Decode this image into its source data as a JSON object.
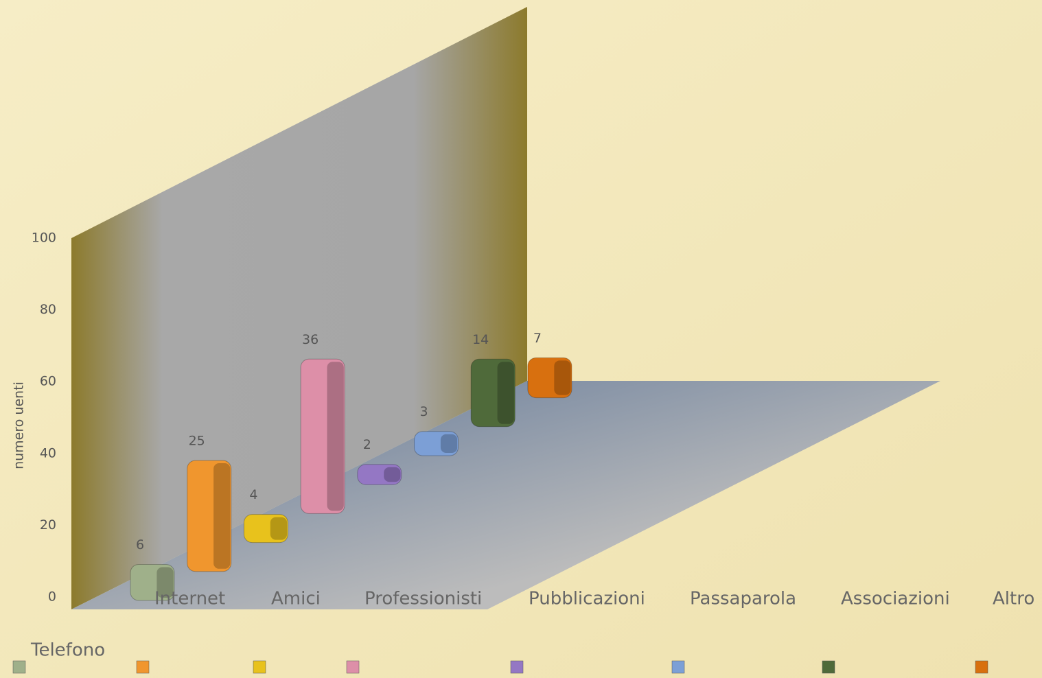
{
  "chart_data": {
    "type": "bar3d",
    "y_axis_label": "numero uenti",
    "categories": [
      "Telefono",
      "Internet",
      "Amici",
      "Professionisti",
      "Pubblicazioni",
      "Passaparola",
      "Associazioni",
      "Altro"
    ],
    "values": [
      6,
      25,
      4,
      36,
      2,
      3,
      14,
      7
    ],
    "colors": [
      "#9fb08a",
      "#f0962e",
      "#e8c21c",
      "#dd8fa8",
      "#9477c4",
      "#7c9fd6",
      "#4f6a3a",
      "#d8700f"
    ],
    "ylim": [
      0,
      100
    ],
    "yticks": [
      0,
      20,
      40,
      60,
      80,
      100
    ]
  }
}
